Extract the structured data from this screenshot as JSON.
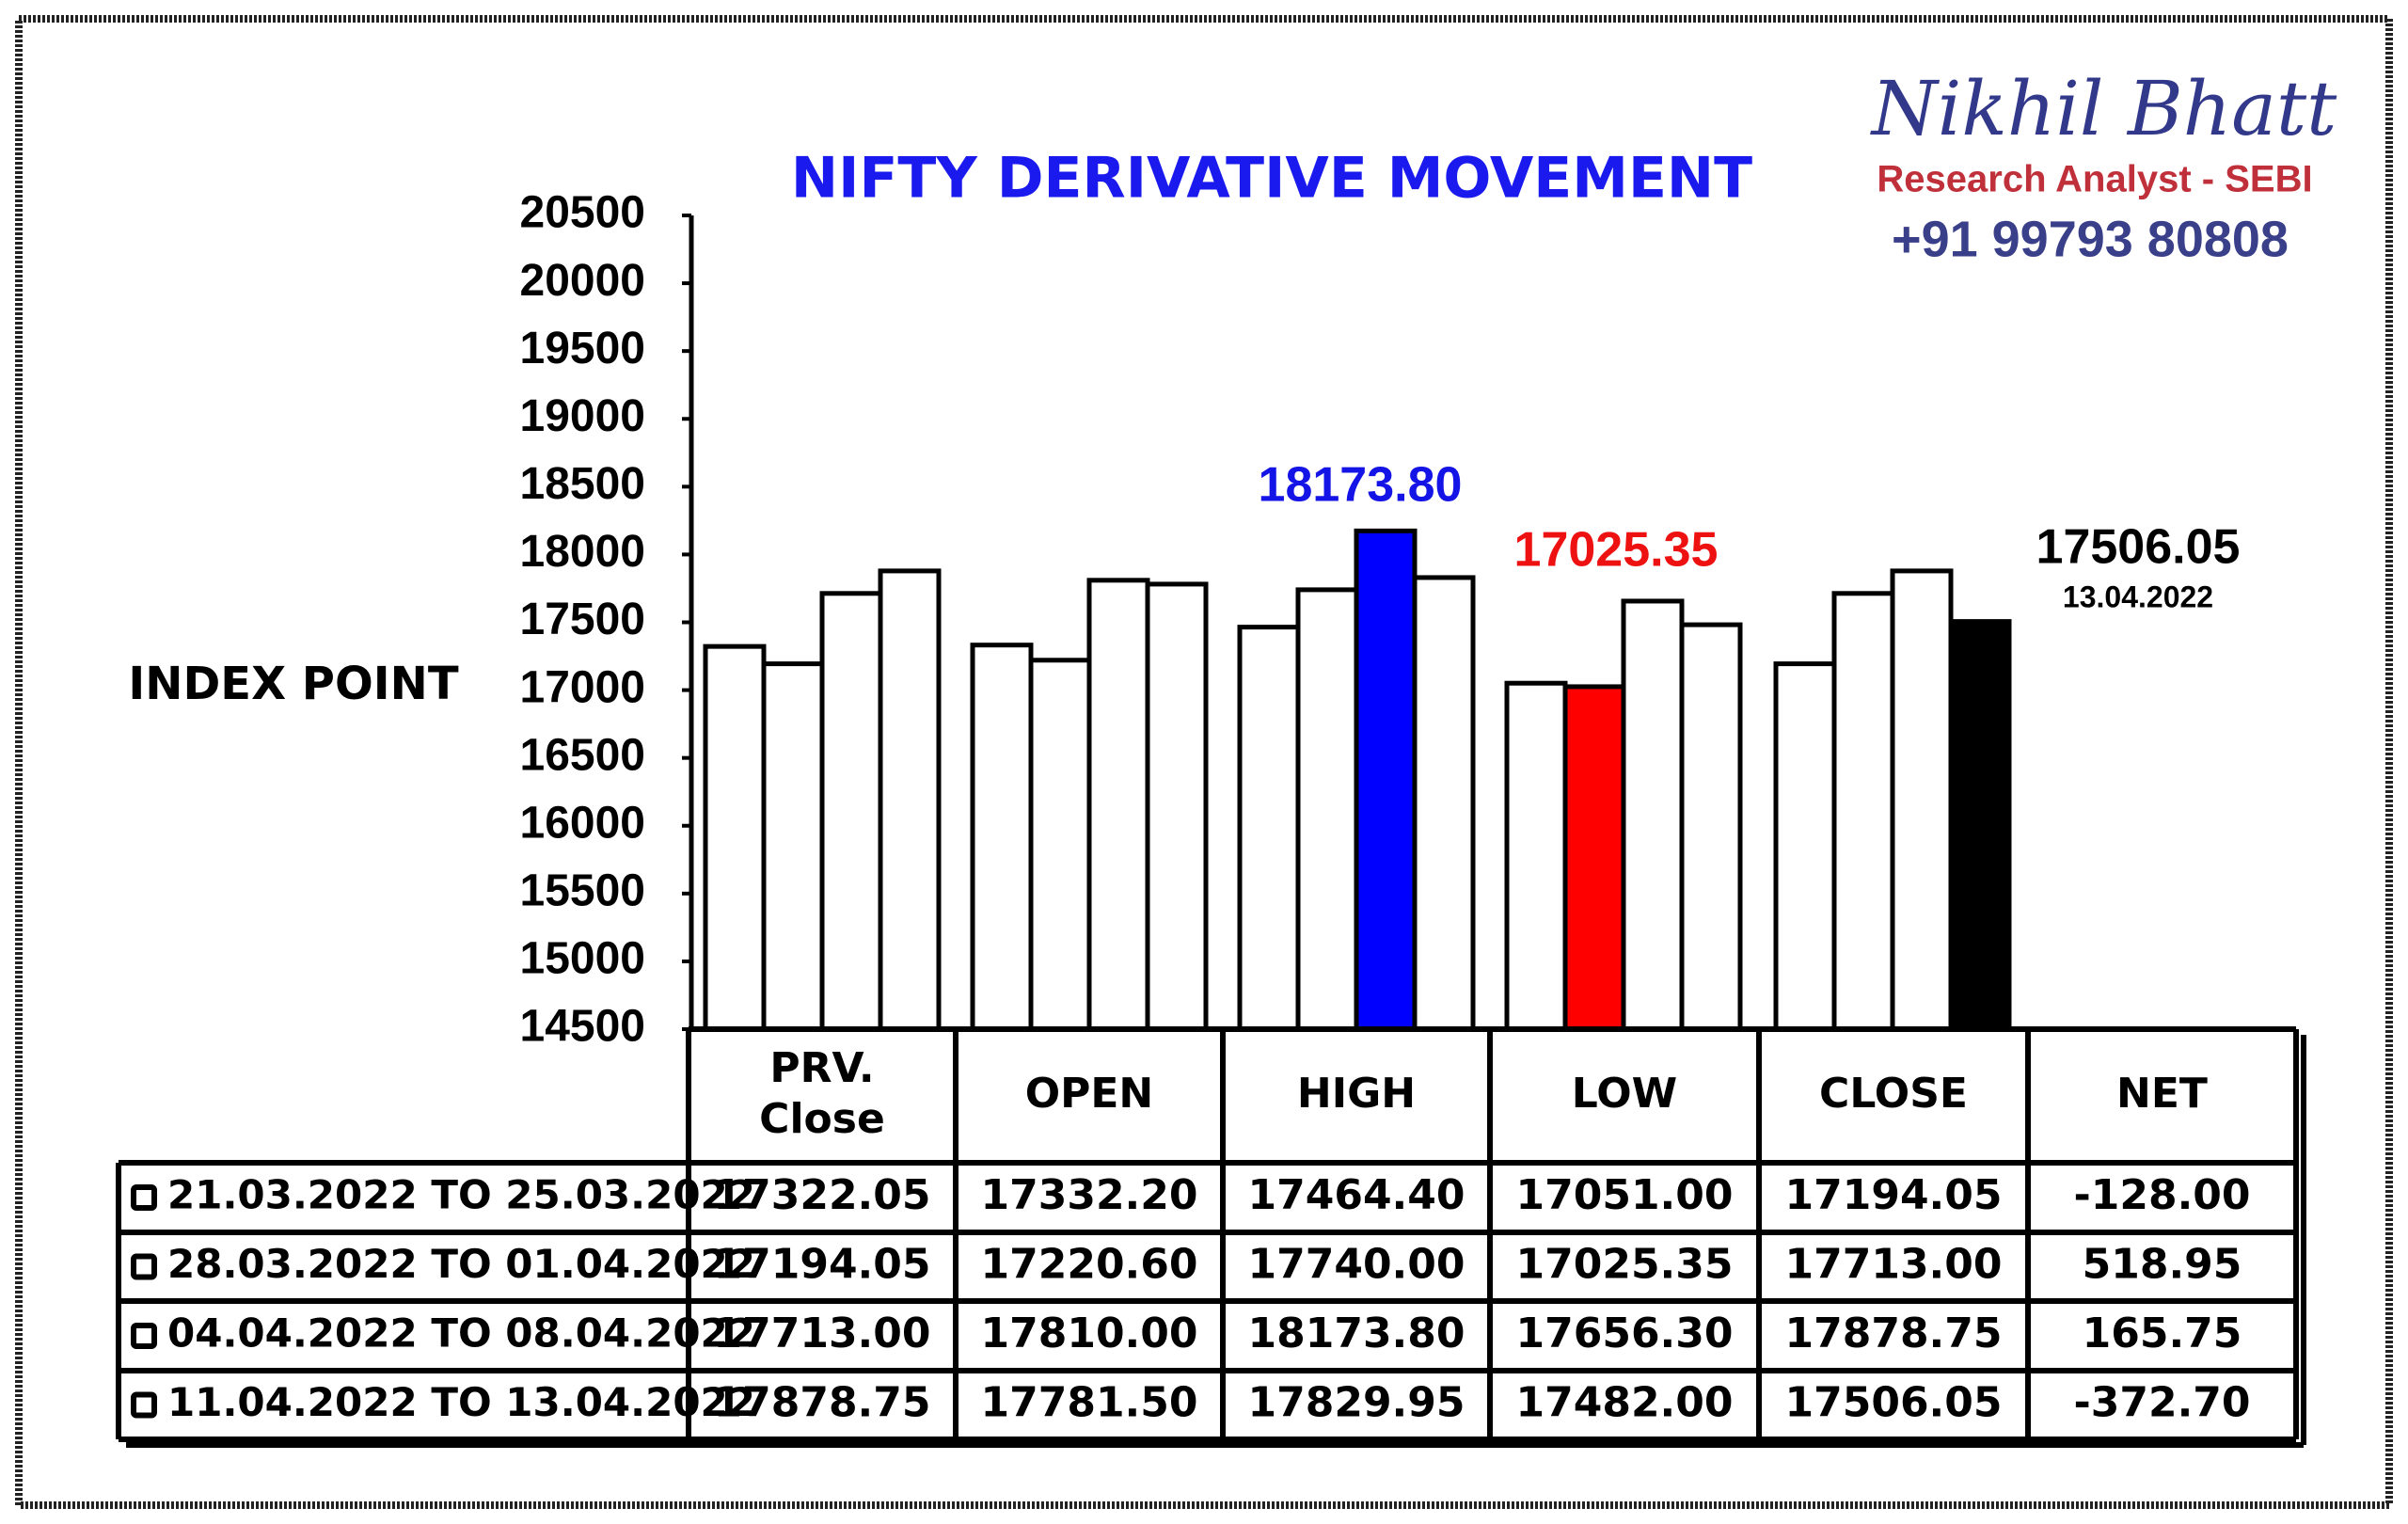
{
  "chart_data": {
    "type": "bar",
    "title": "NIFTY DERIVATIVE MOVEMENT",
    "ylabel": "INDEX POINT",
    "categories": [
      "PRV.\nClose",
      "OPEN",
      "HIGH",
      "LOW",
      "CLOSE"
    ],
    "ylim": [
      14500,
      20500
    ],
    "yticks": [
      14500,
      15000,
      15500,
      16000,
      16500,
      17000,
      17500,
      18000,
      18500,
      19000,
      19500,
      20000,
      20500
    ],
    "series": [
      {
        "name": "21.03.2022 TO 25.03.2022",
        "colors": [
          "#ffffff",
          "#ffffff",
          "#ffffff",
          "#ffffff",
          "#ffffff"
        ],
        "values": [
          17322.05,
          17332.2,
          17464.4,
          17051,
          17194.05
        ],
        "value_labels": [
          "17322.05",
          "17332.20",
          "17464.40",
          "17051.00",
          "17194.05"
        ]
      },
      {
        "name": "28.03.2022 TO 01.04.2022",
        "colors": [
          "#ffffff",
          "#ffffff",
          "#ffffff",
          "#ff0000",
          "#ffffff"
        ],
        "values": [
          17194.05,
          17220.6,
          17740,
          17025.35,
          17713
        ],
        "value_labels": [
          "17194.05",
          "17220.60",
          "17740.00",
          "17025.35",
          "17713.00"
        ]
      },
      {
        "name": "04.04.2022 TO 08.04.2022",
        "colors": [
          "#ffffff",
          "#ffffff",
          "#0000ff",
          "#ffffff",
          "#ffffff"
        ],
        "values": [
          17713,
          17810,
          18173.8,
          17656.3,
          17878.75
        ],
        "value_labels": [
          "17713.00",
          "17810.00",
          "18173.80",
          "17656.30",
          "17878.75"
        ]
      },
      {
        "name": "11.04.2022 TO 13.04.2022",
        "colors": [
          "#ffffff",
          "#ffffff",
          "#ffffff",
          "#ffffff",
          "#000000"
        ],
        "values": [
          17878.75,
          17781.5,
          17829.95,
          17482,
          17506.05
        ],
        "value_labels": [
          "17878.75",
          "17781.50",
          "17829.95",
          "17482.00",
          "17506.05"
        ]
      }
    ],
    "net": {
      "label": "NET",
      "values": [
        -128,
        518.95,
        165.75,
        -372.7
      ],
      "value_labels": [
        "-128.00",
        "518.95",
        "165.75",
        "-372.70"
      ]
    },
    "annotations": [
      {
        "text": "18173.80",
        "color": "#1414e6"
      },
      {
        "text": "17025.35",
        "color": "#ee1111"
      },
      {
        "text": "17506.05",
        "color": "#000000"
      },
      {
        "text": "13.04.2022",
        "color": "#000000"
      }
    ]
  },
  "branding": {
    "name": "Nikhil Bhatt",
    "role": "Research Analyst - SEBI",
    "phone": "+91 99793 80808"
  }
}
